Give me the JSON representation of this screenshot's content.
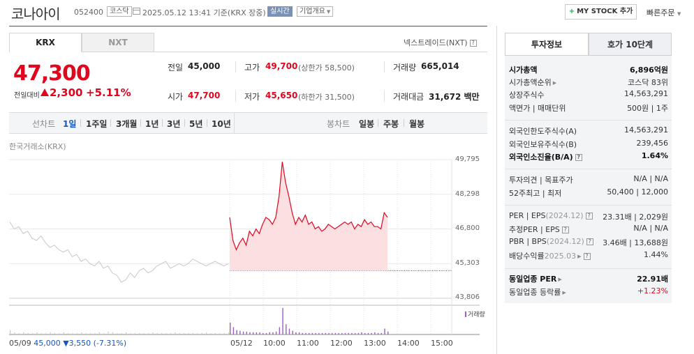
{
  "header": {
    "title": "코나아이",
    "code": "052400",
    "market_badge": "코스닥",
    "as_of": "2025.05.12 13:41 기준(KRX 장중)",
    "realtime_badge": "실시간",
    "company_overview": "기업개요",
    "mystock_button": "MY STOCK 추가",
    "quick_order": "빠른주문"
  },
  "exchange_tabs": [
    "KRX",
    "NXT"
  ],
  "nxt_link": "넥스트레이드(NXT)",
  "quote": {
    "current_price": "47,300",
    "change_label": "전일대비",
    "change_abs": "2,300",
    "change_pct": "+5.11%",
    "prev_close": {
      "label": "전일",
      "value": "45,000"
    },
    "open": {
      "label": "시가",
      "value": "47,700"
    },
    "high": {
      "label": "고가",
      "value": "49,700",
      "sub": "(상한가 58,500)"
    },
    "low": {
      "label": "저가",
      "value": "45,650",
      "sub": "(하한가 31,500)"
    },
    "volume": {
      "label": "거래량",
      "value": "665,014"
    },
    "amount": {
      "label": "거래대금",
      "value": "31,672",
      "unit": "백만"
    }
  },
  "period_bar": {
    "line_label": "선차트",
    "line_periods": [
      "1일",
      "1주일",
      "3개월",
      "1년",
      "3년",
      "5년",
      "10년"
    ],
    "candle_label": "봉차트",
    "candle_periods": [
      "일봉",
      "주봉",
      "월봉"
    ]
  },
  "chart_title": "한국거래소(KRX)",
  "volume_legend": "거래량",
  "prev_day_info": {
    "date": "05/09",
    "close": "45,000",
    "change": "▼3,550",
    "pct": "(-7.31%)"
  },
  "chart_data": {
    "type": "line",
    "y_ticks": [
      "49,795",
      "48,298",
      "46,800",
      "45,303",
      "43,806"
    ],
    "ylim": [
      43806,
      49795
    ],
    "x_ticks": [
      "05/12",
      "10:00",
      "11:00",
      "12:00",
      "13:00",
      "14:00",
      "15:00"
    ],
    "reference_line": 45000,
    "prev_day_series": {
      "name": "05/09",
      "values": [
        47100,
        46800,
        46900,
        46600,
        46700,
        46400,
        46300,
        46500,
        46200,
        46000,
        46100,
        45900,
        45800,
        45900,
        45600,
        45700,
        45400,
        45500,
        45300,
        45200,
        45400,
        45100,
        45200,
        44900,
        44800,
        44500,
        44600,
        44900,
        44700,
        45000,
        45100,
        44900,
        45000,
        45200,
        45300,
        45400,
        45100,
        45200,
        45300,
        45200,
        45300,
        45500,
        45400,
        45300,
        45200,
        45300,
        45400,
        45300,
        45200,
        45300
      ]
    },
    "today_series": {
      "name": "05/12",
      "values": [
        47300,
        46300,
        45900,
        46200,
        46400,
        46100,
        46700,
        46500,
        46800,
        46600,
        47000,
        47300,
        47200,
        47000,
        47300,
        48200,
        49700,
        48800,
        48200,
        47500,
        47000,
        47300,
        47100,
        47400,
        47000,
        47100,
        46800,
        46900,
        46700,
        46800,
        47000,
        46900,
        46800,
        46900,
        47000,
        47100,
        47000,
        47100,
        46800,
        47000,
        46900,
        47200,
        47000,
        47100,
        46900,
        46900,
        46800,
        47500,
        47300
      ]
    },
    "volume_prev": [
      6,
      3,
      2,
      3,
      2,
      2,
      3,
      2,
      2,
      3,
      2,
      2,
      3,
      2,
      2,
      2,
      3,
      2,
      2,
      2,
      3,
      2,
      4,
      3,
      2,
      2,
      3,
      2,
      2,
      2,
      2,
      2,
      3,
      2,
      2,
      2,
      2,
      3,
      2,
      2,
      2,
      2,
      2,
      2,
      3,
      2,
      2,
      2,
      2,
      3
    ],
    "volume_today": [
      16,
      10,
      6,
      5,
      4,
      4,
      3,
      3,
      3,
      3,
      2,
      2,
      3,
      3,
      4,
      10,
      36,
      14,
      8,
      5,
      3,
      3,
      2,
      2,
      2,
      2,
      2,
      2,
      2,
      2,
      2,
      2,
      2,
      2,
      2,
      2,
      2,
      2,
      2,
      2,
      3,
      2,
      2,
      2,
      3,
      2,
      2,
      8,
      4
    ]
  },
  "right_tabs": [
    "투자정보",
    "호가 10단계"
  ],
  "invest_info": [
    {
      "label": "시가총액",
      "value": "6,896억원",
      "bold": true
    },
    {
      "label": "시가총액순위",
      "value": "코스닥 83위",
      "arrow": true
    },
    {
      "label": "상장주식수",
      "value": "14,563,291"
    },
    {
      "label": "액면가 | 매매단위",
      "value": "500원 | 1주"
    },
    {
      "label": "외국인한도주식수(A)",
      "value": "14,563,291"
    },
    {
      "label": "외국인보유주식수(B)",
      "value": "239,456"
    },
    {
      "label": "외국인소진율(B/A)",
      "value": "1.64%",
      "bold": true,
      "help": true
    },
    {
      "label": "투자의견 | 목표주가",
      "value": "N/A | N/A"
    },
    {
      "label": "52주최고 | 최저",
      "value": "50,400 | 12,000"
    },
    {
      "label": "PER | EPS",
      "sub": "(2024.12)",
      "value": "23.31배 | 2,029원",
      "help": true
    },
    {
      "label": "추정PER | EPS",
      "value": "N/A | N/A",
      "help": true
    },
    {
      "label": "PBR | BPS",
      "sub": "(2024.12)",
      "value": "3.46배 | 13,688원",
      "help": true
    },
    {
      "label": "배당수익률",
      "sub": "2025.03",
      "value": "1.44%",
      "arrow": true,
      "help": true
    },
    {
      "label": "동일업종 PER",
      "value": "22.91배",
      "bold": true,
      "arrow": true
    },
    {
      "label": "동일업종 등락률",
      "value": "+1.23%",
      "red": true,
      "arrow": true
    }
  ],
  "colors": {
    "up": "#e0061e",
    "down": "#1655c0",
    "line_today": "#e0061e",
    "fill_today": "#fbdfe1",
    "line_prev": "#c8c8c8",
    "volume_today": "#9b5fc0",
    "volume_prev": "#c9c9c9"
  }
}
